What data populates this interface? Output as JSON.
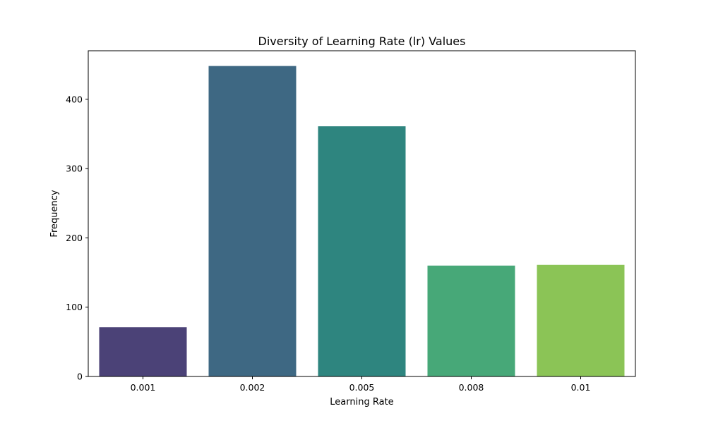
{
  "chart_data": {
    "type": "bar",
    "title": "Diversity of Learning Rate (lr) Values",
    "xlabel": "Learning Rate",
    "ylabel": "Frequency",
    "categories": [
      "0.001",
      "0.002",
      "0.005",
      "0.008",
      "0.01"
    ],
    "values": [
      71,
      448,
      361,
      160,
      161
    ],
    "ylim": [
      0,
      470
    ],
    "yticks": [
      0,
      100,
      200,
      300,
      400
    ],
    "colors": [
      "#4b4277",
      "#3e6883",
      "#2e857f",
      "#47a878",
      "#8bc456"
    ],
    "grid": false,
    "legend": "none"
  }
}
